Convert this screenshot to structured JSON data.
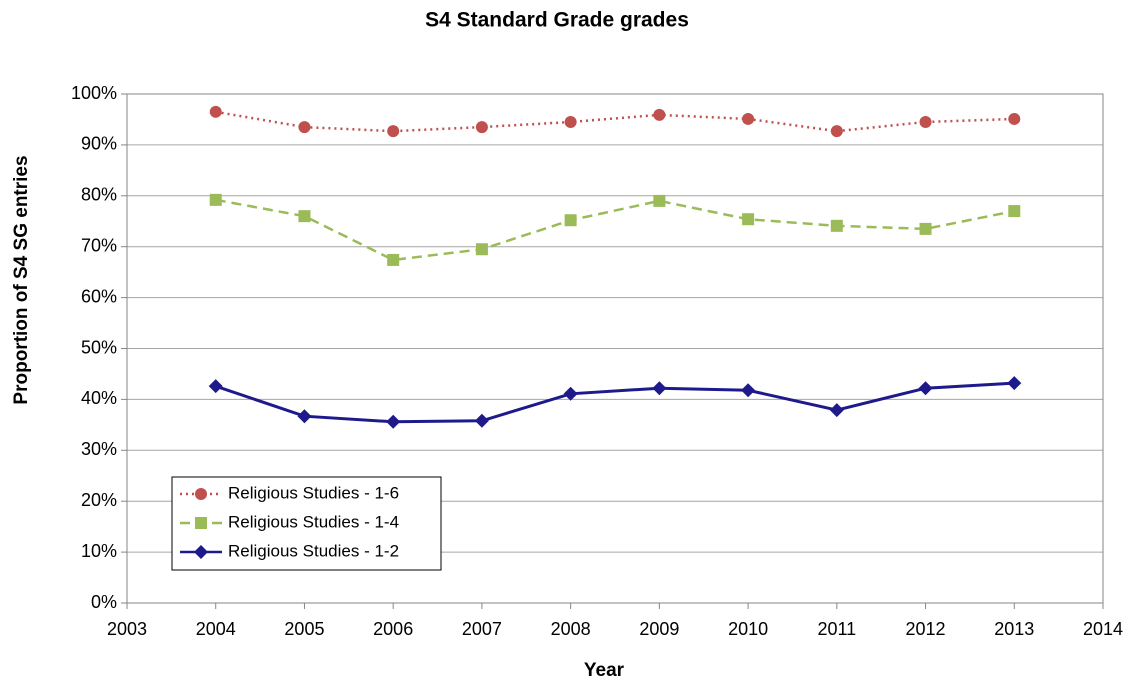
{
  "chart_data": {
    "type": "line",
    "title": "S4 Standard Grade grades",
    "x_label": "Year",
    "y_label": "Proportion of S4 SG entries",
    "x": [
      2004,
      2005,
      2006,
      2007,
      2008,
      2009,
      2010,
      2011,
      2012,
      2013
    ],
    "series": [
      {
        "name": "Religious Studies - 1-6",
        "color": "#c0504d",
        "marker": "circle",
        "dash": "dotted",
        "values": [
          96.5,
          93.5,
          92.7,
          93.5,
          94.5,
          95.9,
          95.1,
          92.7,
          94.5,
          95.1
        ]
      },
      {
        "name": "Religious Studies - 1-4",
        "color": "#9bbb59",
        "marker": "square",
        "dash": "dashed",
        "values": [
          79.2,
          76.0,
          67.4,
          69.5,
          75.2,
          79.0,
          75.4,
          74.1,
          73.5,
          77.0
        ]
      },
      {
        "name": "Religious Studies - 1-2",
        "color": "#1f1a8c",
        "marker": "diamond",
        "dash": "solid",
        "values": [
          42.6,
          36.7,
          35.6,
          35.8,
          41.1,
          42.2,
          41.8,
          37.9,
          42.2,
          43.2
        ]
      }
    ],
    "xlim": [
      2003,
      2014
    ],
    "xticks": [
      2003,
      2004,
      2005,
      2006,
      2007,
      2008,
      2009,
      2010,
      2011,
      2012,
      2013,
      2014
    ],
    "ylim": [
      0,
      100
    ],
    "yticks": [
      {
        "value": 0,
        "label": "0%"
      },
      {
        "value": 10,
        "label": "10%"
      },
      {
        "value": 20,
        "label": "20%"
      },
      {
        "value": 30,
        "label": "30%"
      },
      {
        "value": 40,
        "label": "40%"
      },
      {
        "value": 50,
        "label": "50%"
      },
      {
        "value": 60,
        "label": "60%"
      },
      {
        "value": 70,
        "label": "70%"
      },
      {
        "value": 80,
        "label": "80%"
      },
      {
        "value": 90,
        "label": "90%"
      },
      {
        "value": 100,
        "label": "100%"
      }
    ],
    "grid": true,
    "legend": "lower left"
  }
}
